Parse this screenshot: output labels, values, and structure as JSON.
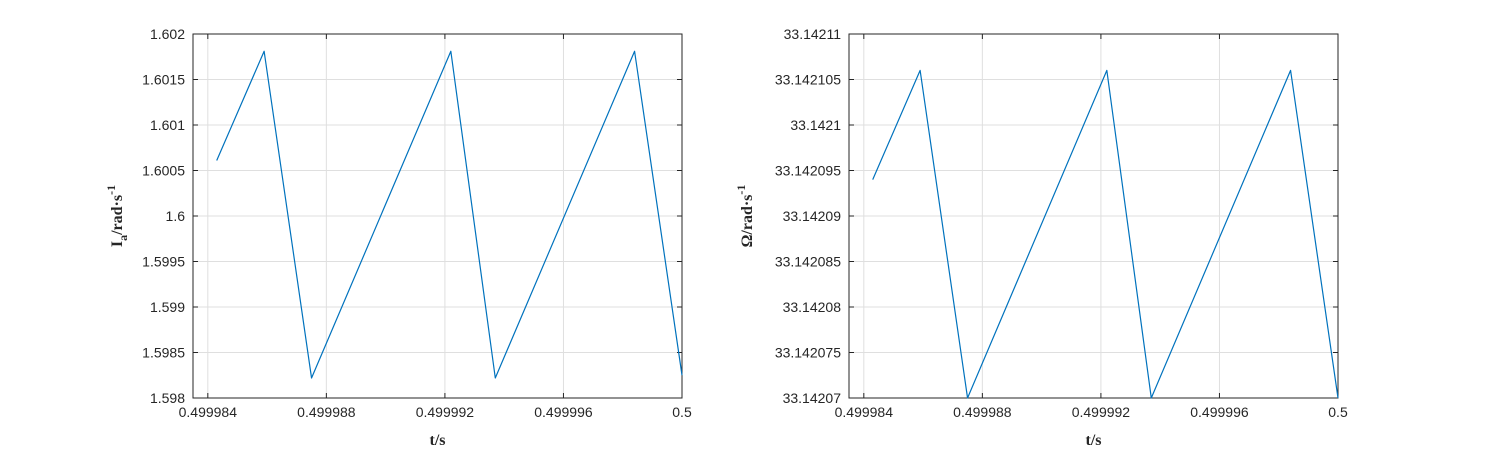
{
  "colors": {
    "series": "#0072BD"
  },
  "chart_data": [
    {
      "type": "line",
      "title": "",
      "xlabel": "t/s",
      "ylabel": {
        "base": "I",
        "sub": "a",
        "rest": "/rad·s",
        "sup": "-1"
      },
      "xlim": [
        0.4999835,
        0.5
      ],
      "ylim": [
        1.598,
        1.602
      ],
      "grid": true,
      "xticks": [
        0.499984,
        0.499988,
        0.499992,
        0.499996,
        0.5
      ],
      "xtick_labels": [
        "0.499984",
        "0.499988",
        "0.499992",
        "0.499996",
        "0.5"
      ],
      "yticks": [
        1.598,
        1.5985,
        1.599,
        1.5995,
        1.6,
        1.6005,
        1.601,
        1.6015,
        1.602
      ],
      "ytick_labels": [
        "1.598",
        "1.5985",
        "1.599",
        "1.5995",
        "1.6",
        "1.6005",
        "1.601",
        "1.6015",
        "1.602"
      ],
      "series": [
        {
          "x": [
            0.4999843,
            0.4999859,
            0.4999875,
            0.4999922,
            0.4999937,
            0.4999984,
            0.5
          ],
          "y": [
            1.60061,
            1.60181,
            1.59822,
            1.60181,
            1.59822,
            1.60181,
            1.59825
          ]
        }
      ]
    },
    {
      "type": "line",
      "title": "",
      "xlabel": "t/s",
      "ylabel": {
        "base": "Ω",
        "sub": "",
        "rest": "/rad·s",
        "sup": "-1"
      },
      "xlim": [
        0.4999835,
        0.5
      ],
      "ylim": [
        33.14207,
        33.14211
      ],
      "grid": true,
      "xticks": [
        0.499984,
        0.499988,
        0.499992,
        0.499996,
        0.5
      ],
      "xtick_labels": [
        "0.499984",
        "0.499988",
        "0.499992",
        "0.499996",
        "0.5"
      ],
      "yticks": [
        33.14207,
        33.142075,
        33.14208,
        33.142085,
        33.14209,
        33.142095,
        33.1421,
        33.142105,
        33.14211
      ],
      "ytick_labels": [
        "33.14207",
        "33.142075",
        "33.14208",
        "33.142085",
        "33.14209",
        "33.142095",
        "33.1421",
        "33.142105",
        "33.14211"
      ],
      "series": [
        {
          "x": [
            0.4999843,
            0.4999859,
            0.4999875,
            0.4999922,
            0.4999937,
            0.4999984,
            0.5
          ],
          "y": [
            33.142094,
            33.142106,
            33.14207,
            33.142106,
            33.14207,
            33.142106,
            33.14207
          ]
        }
      ]
    }
  ]
}
